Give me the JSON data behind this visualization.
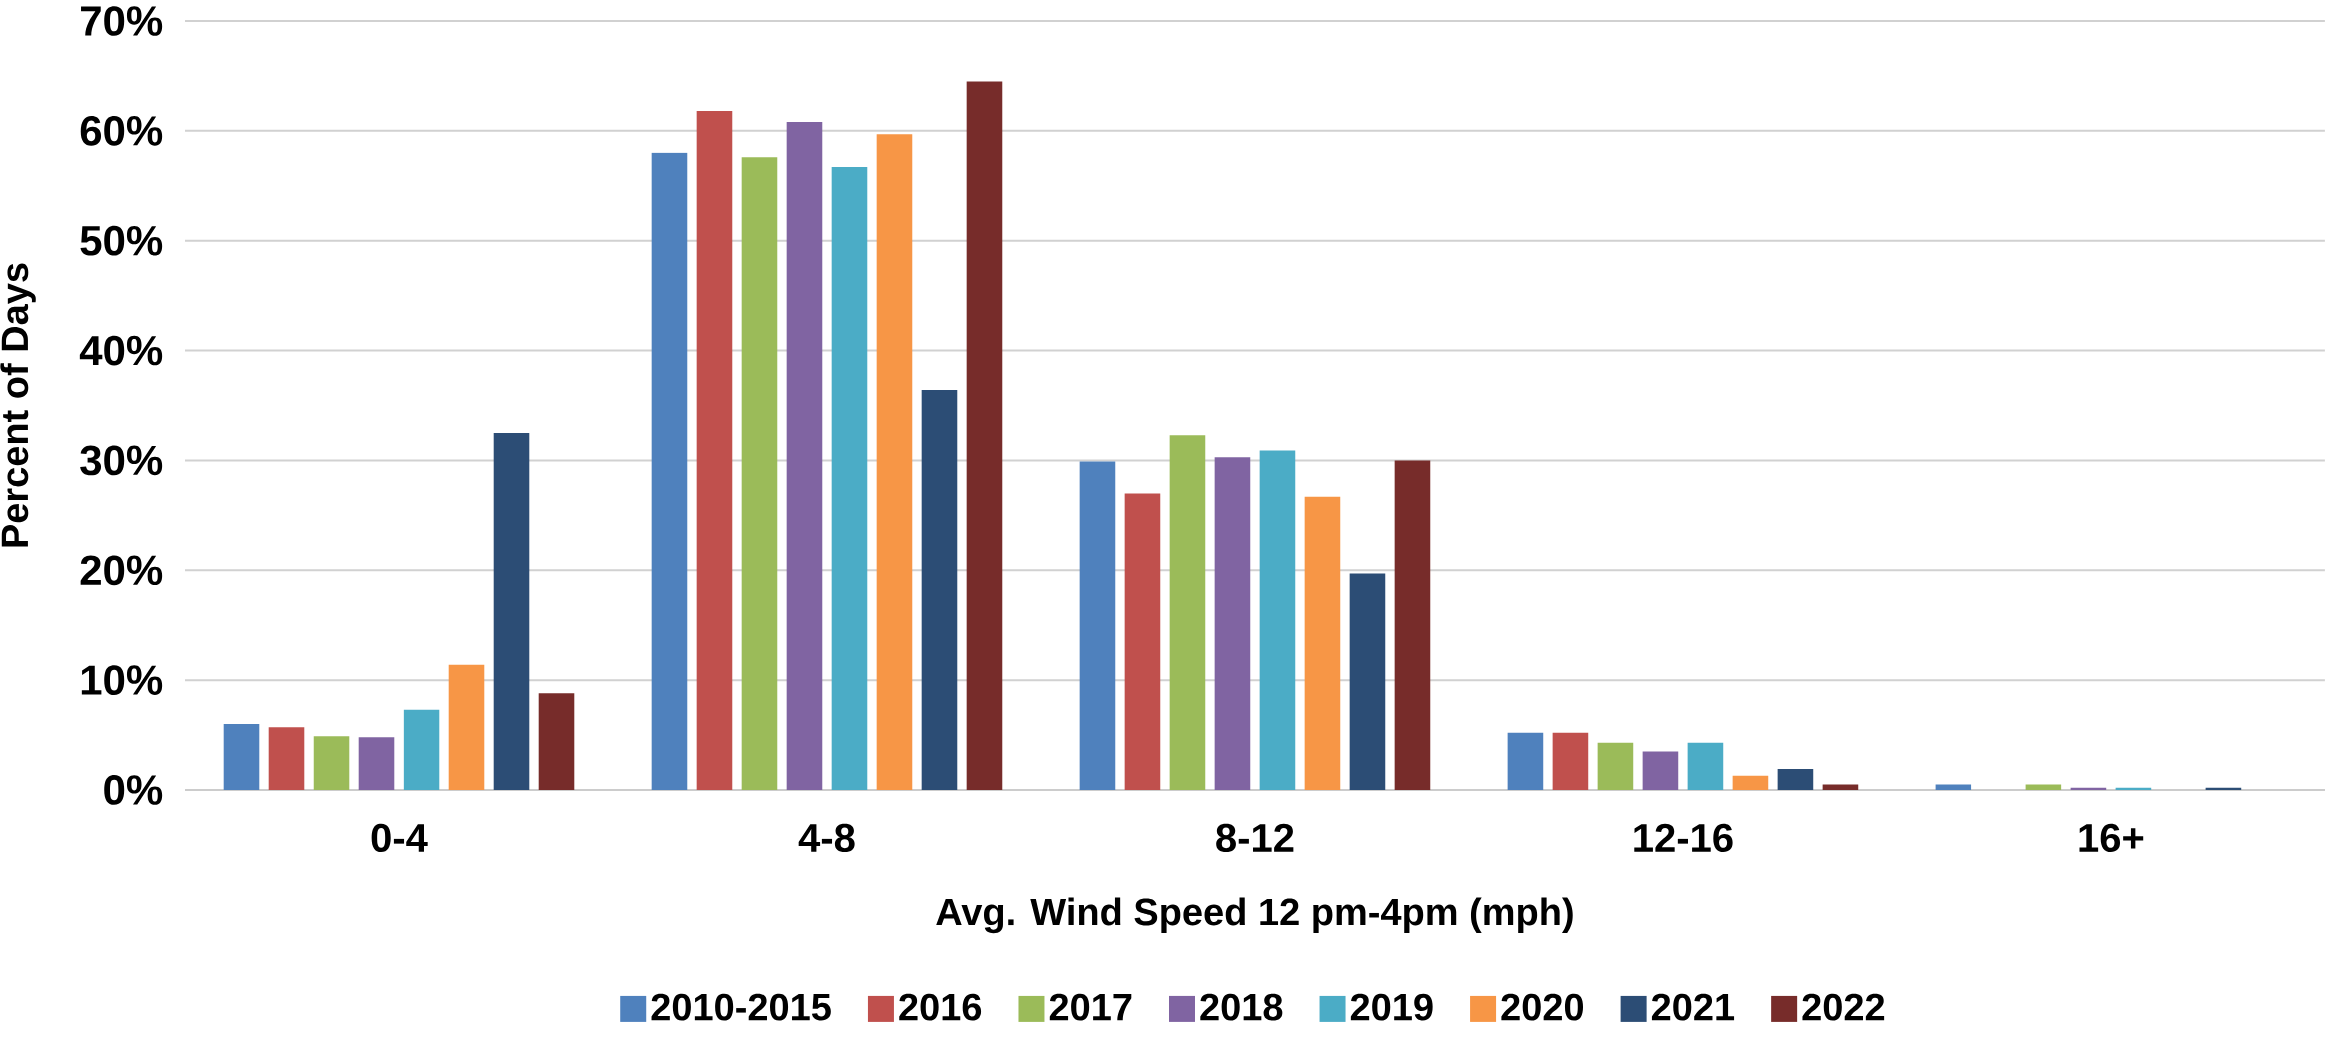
{
  "chart_data": {
    "type": "bar",
    "xlabel": "Avg. Wind Speed 12 pm-4pm (mph)",
    "ylabel": "Percent of Days",
    "categories": [
      "0-4",
      "4-8",
      "8-12",
      "12-16",
      "16+"
    ],
    "series": [
      {
        "name": "2010-2015",
        "color": "#4f81bd",
        "values": [
          6.0,
          58.0,
          29.9,
          5.2,
          0.5
        ]
      },
      {
        "name": "2016",
        "color": "#c0504d",
        "values": [
          5.7,
          61.8,
          27.0,
          5.2,
          0
        ]
      },
      {
        "name": "2017",
        "color": "#9bbb59",
        "values": [
          4.9,
          57.6,
          32.3,
          4.3,
          0.5
        ]
      },
      {
        "name": "2018",
        "color": "#8064a2",
        "values": [
          4.8,
          60.8,
          30.3,
          3.5,
          0.2
        ]
      },
      {
        "name": "2019",
        "color": "#4bacc6",
        "values": [
          7.3,
          56.7,
          30.9,
          4.3,
          0.2
        ]
      },
      {
        "name": "2020",
        "color": "#f79646",
        "values": [
          11.4,
          59.7,
          26.7,
          1.3,
          0
        ]
      },
      {
        "name": "2021",
        "color": "#2c4d75",
        "values": [
          32.5,
          36.4,
          19.7,
          1.9,
          0.2
        ]
      },
      {
        "name": "2022",
        "color": "#772c2a",
        "values": [
          8.8,
          64.5,
          30.0,
          0.5,
          0
        ]
      }
    ],
    "ylim": [
      0,
      70
    ],
    "yticks": [
      {
        "value": 0,
        "label": "0%"
      },
      {
        "value": 10,
        "label": "10%"
      },
      {
        "value": 20,
        "label": "20%"
      },
      {
        "value": 30,
        "label": "30%"
      },
      {
        "value": 40,
        "label": "40%"
      },
      {
        "value": 50,
        "label": "50%"
      },
      {
        "value": 60,
        "label": "60%"
      },
      {
        "value": 70,
        "label": "70%"
      }
    ],
    "grid": "y",
    "legend": "bottom"
  }
}
